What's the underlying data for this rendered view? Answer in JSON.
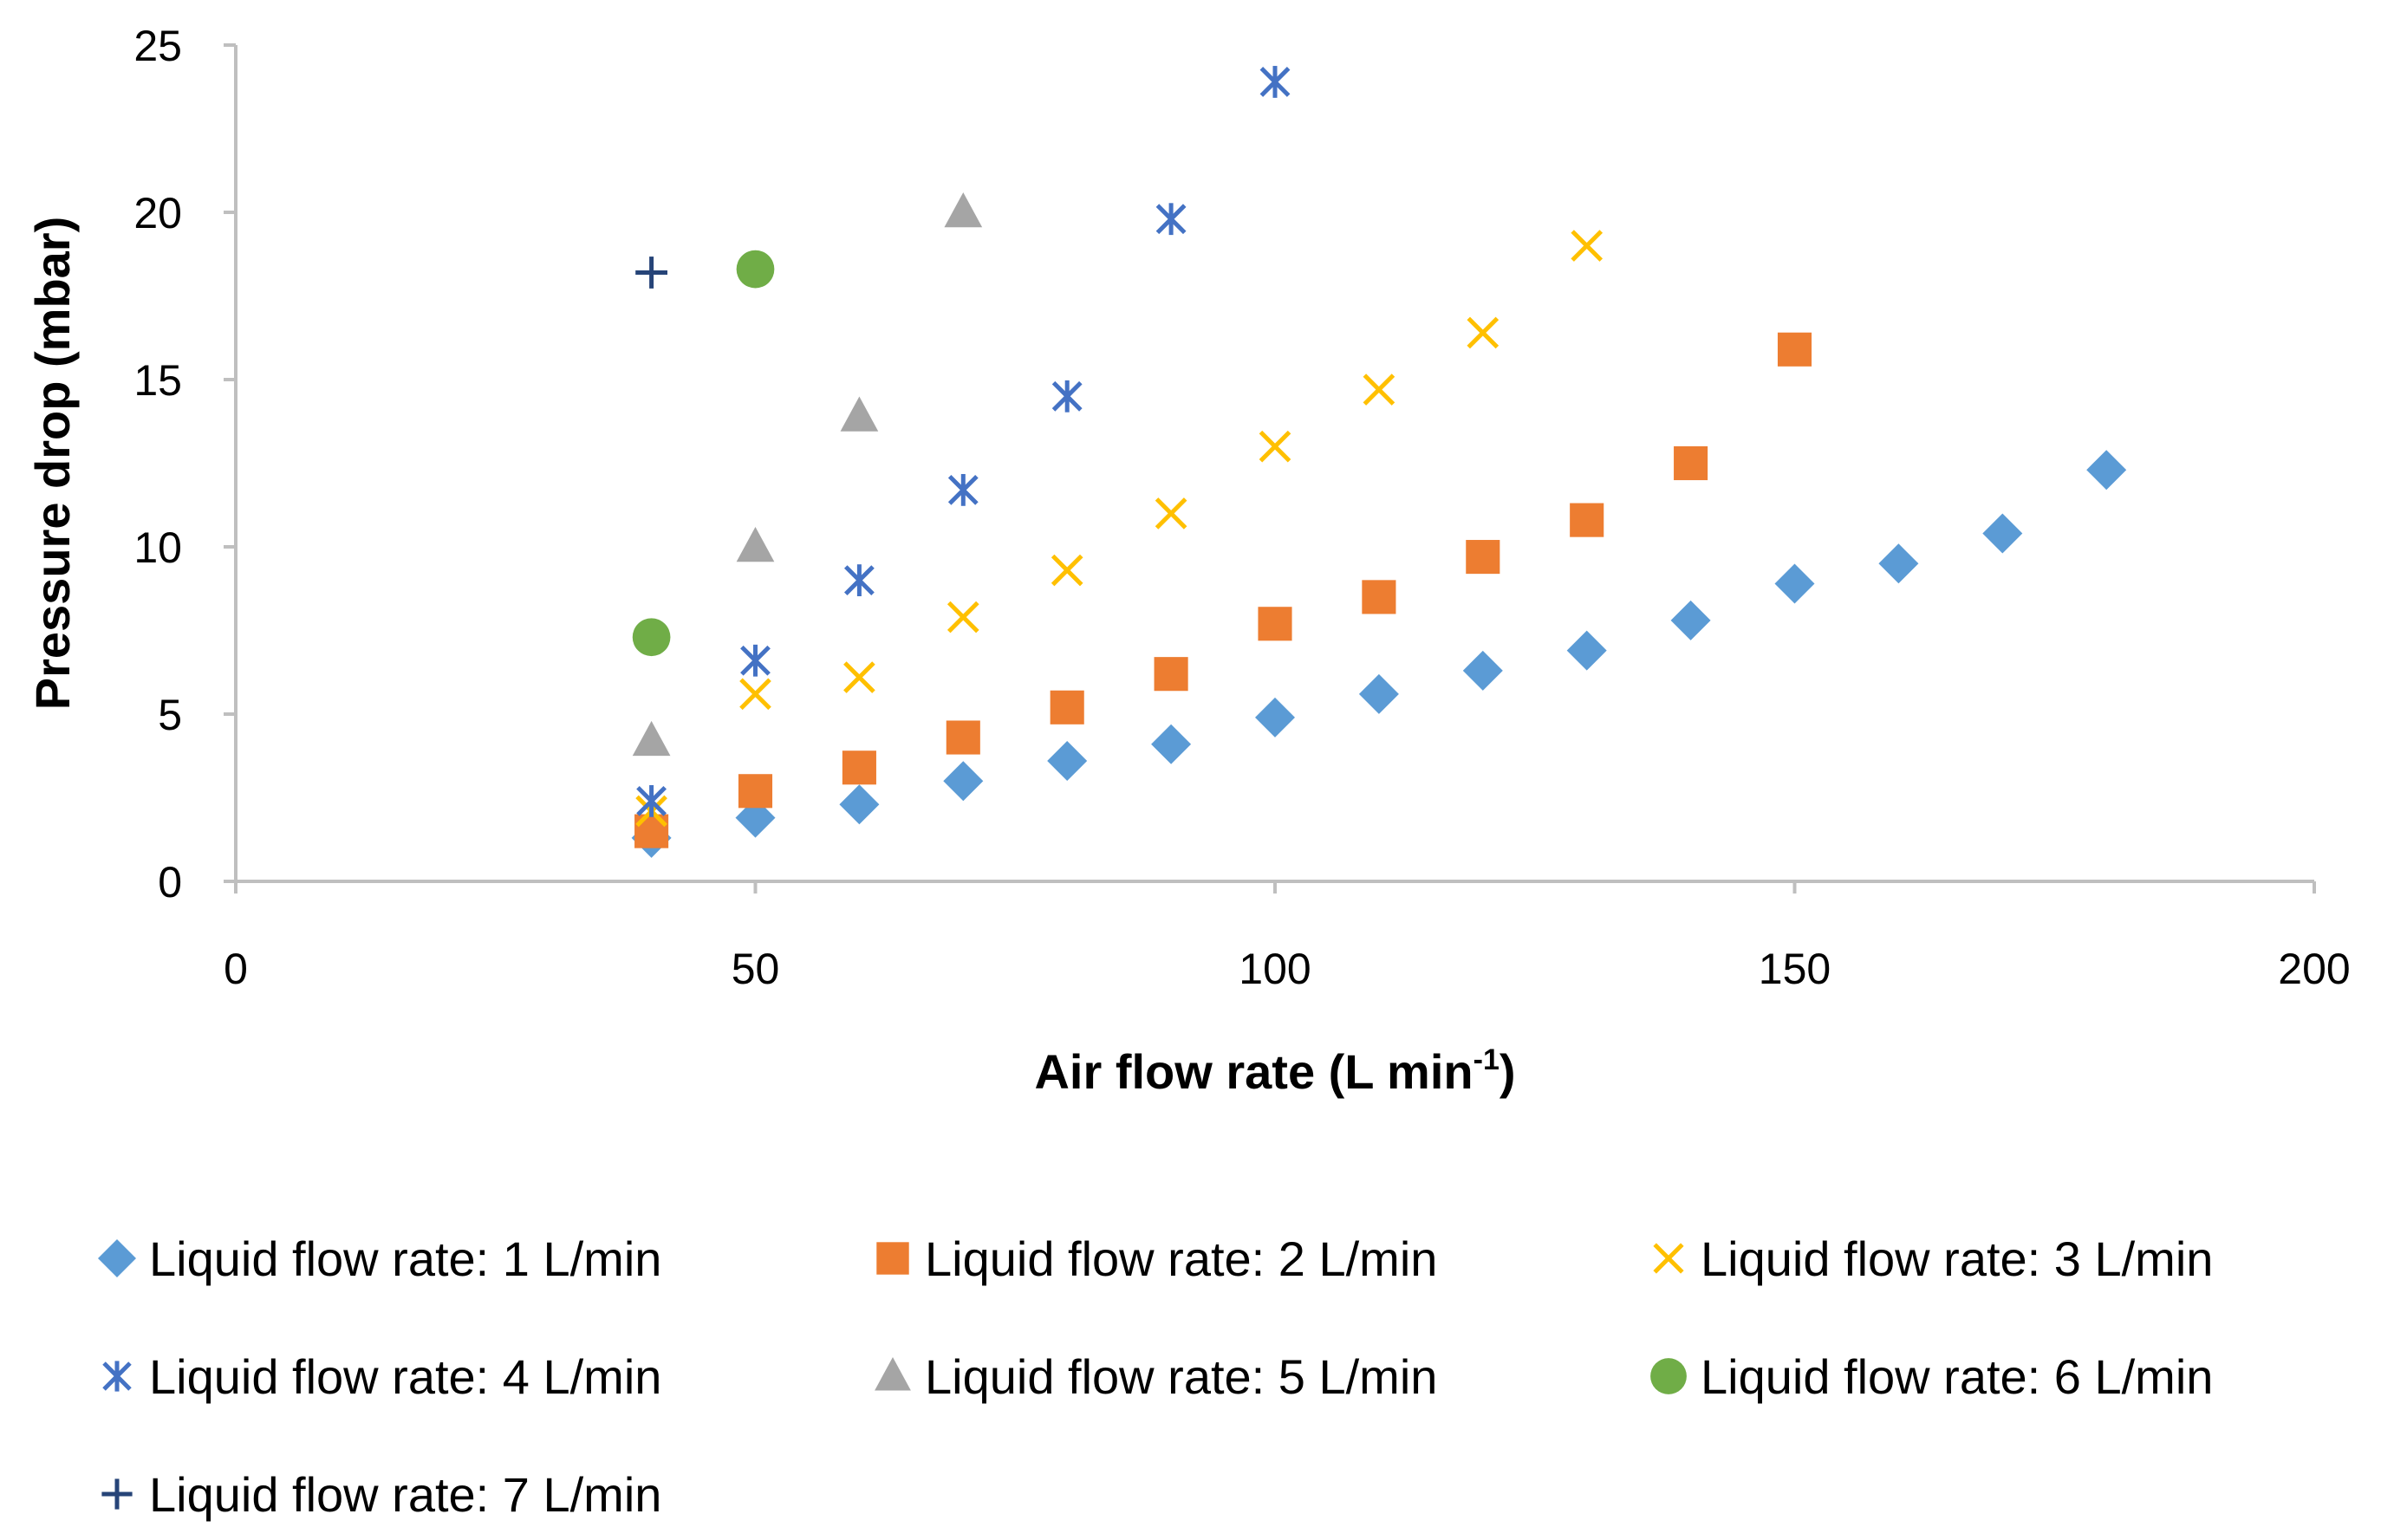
{
  "chart_data": {
    "type": "scatter",
    "title": "",
    "xlabel": "Air flow rate (L min",
    "xlabel_sup": "-1",
    "xlabel_close": ")",
    "ylabel": "Pressure drop (mbar)",
    "xlim": [
      0,
      200
    ],
    "ylim": [
      0,
      25
    ],
    "xticks": [
      0,
      50,
      100,
      150,
      200
    ],
    "yticks": [
      0,
      5,
      10,
      15,
      20,
      25
    ],
    "grid": false,
    "legend_position": "bottom",
    "series": [
      {
        "name": "Liquid flow rate: 1 L/min",
        "marker": "diamond",
        "color": "#5B9BD5",
        "x": [
          40,
          50,
          60,
          70,
          80,
          90,
          100,
          110,
          120,
          130,
          140,
          150,
          160,
          170,
          180
        ],
        "y": [
          1.3,
          1.9,
          2.3,
          3.0,
          3.6,
          4.1,
          4.9,
          5.6,
          6.3,
          6.9,
          7.8,
          8.9,
          9.5,
          10.4,
          12.3
        ]
      },
      {
        "name": "Liquid flow rate: 2 L/min",
        "marker": "square",
        "color": "#ED7D31",
        "x": [
          40,
          50,
          60,
          70,
          80,
          90,
          100,
          110,
          120,
          130,
          140,
          150
        ],
        "y": [
          1.5,
          2.7,
          3.4,
          4.3,
          5.2,
          6.2,
          7.7,
          8.5,
          9.7,
          10.8,
          12.5,
          15.9
        ]
      },
      {
        "name": "Liquid flow rate: 3 L/min",
        "marker": "x",
        "color": "#FFC000",
        "x": [
          40,
          50,
          60,
          70,
          80,
          90,
          100,
          110,
          120,
          130
        ],
        "y": [
          2.1,
          5.6,
          6.1,
          7.9,
          9.3,
          11.0,
          13.0,
          14.7,
          16.4,
          19.0
        ]
      },
      {
        "name": "Liquid flow rate: 4 L/min",
        "marker": "asterisk",
        "color": "#4472C4",
        "x": [
          40,
          50,
          60,
          70,
          80,
          90,
          100
        ],
        "y": [
          2.4,
          6.6,
          9.0,
          11.7,
          14.5,
          19.8,
          23.9
        ]
      },
      {
        "name": "Liquid flow rate: 5 L/min",
        "marker": "triangle",
        "color": "#A5A5A5",
        "x": [
          40,
          50,
          60,
          70
        ],
        "y": [
          4.2,
          10.0,
          13.9,
          20.0
        ]
      },
      {
        "name": "Liquid flow rate: 6 L/min",
        "marker": "circle",
        "color": "#70AD47",
        "x": [
          40,
          50
        ],
        "y": [
          7.3,
          18.3
        ]
      },
      {
        "name": "Liquid flow rate: 7 L/min",
        "marker": "plus",
        "color": "#264478",
        "x": [
          40
        ],
        "y": [
          18.2
        ]
      }
    ]
  }
}
